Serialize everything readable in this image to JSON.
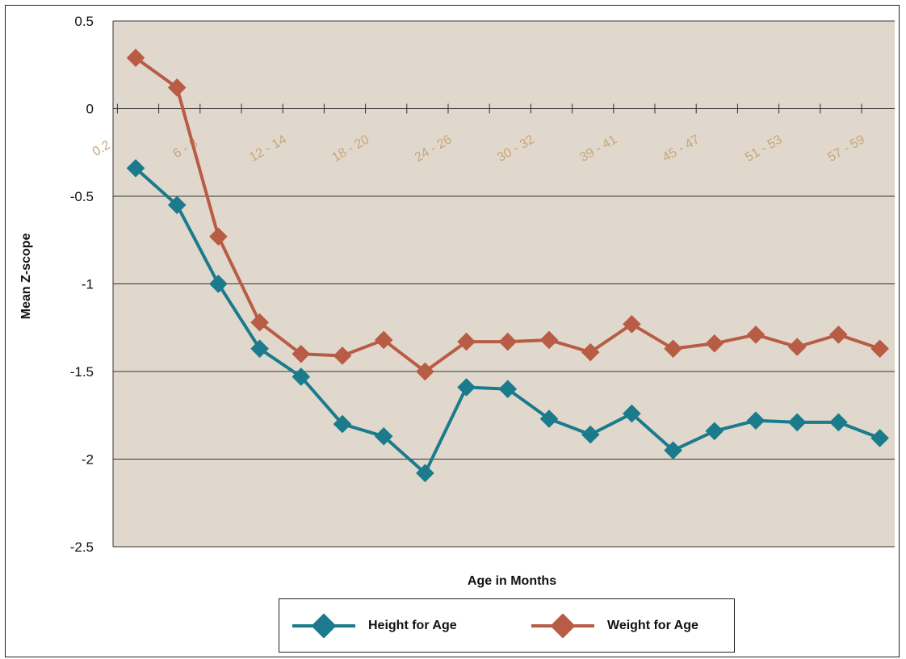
{
  "chart_data": {
    "type": "line",
    "title": "",
    "xlabel": "Age in Months",
    "ylabel": "Mean Z-scope",
    "ylim": [
      -2.5,
      0.5
    ],
    "yticks": [
      "0.5",
      "0",
      "-0.5",
      "-1",
      "-1.5",
      "-2",
      "-2.5"
    ],
    "x_tick_labels": [
      "0.2",
      "6 - 8",
      "12 - 14",
      "18 - 20",
      "24 - 26",
      "30 - 32",
      "39 - 41",
      "45 - 47",
      "51 - 53",
      "57 - 59"
    ],
    "grid": "horizontal",
    "legend_position": "bottom",
    "plot_background": "#e0d8cc",
    "series": [
      {
        "name": "Height for Age",
        "color": "#1b7b8c",
        "marker": "diamond",
        "values": [
          -0.34,
          -0.55,
          -1.0,
          -1.37,
          -1.53,
          -1.8,
          -1.87,
          -2.08,
          -1.59,
          -1.6,
          -1.77,
          -1.86,
          -1.74,
          -1.95,
          -1.84,
          -1.78,
          -1.79,
          -1.79,
          -1.88
        ]
      },
      {
        "name": "Weight for Age",
        "color": "#b85c45",
        "marker": "diamond",
        "values": [
          0.29,
          0.12,
          -0.73,
          -1.22,
          -1.4,
          -1.41,
          -1.32,
          -1.5,
          -1.33,
          -1.33,
          -1.32,
          -1.39,
          -1.23,
          -1.37,
          -1.34,
          -1.29,
          -1.36,
          -1.29,
          -1.37
        ]
      }
    ]
  }
}
